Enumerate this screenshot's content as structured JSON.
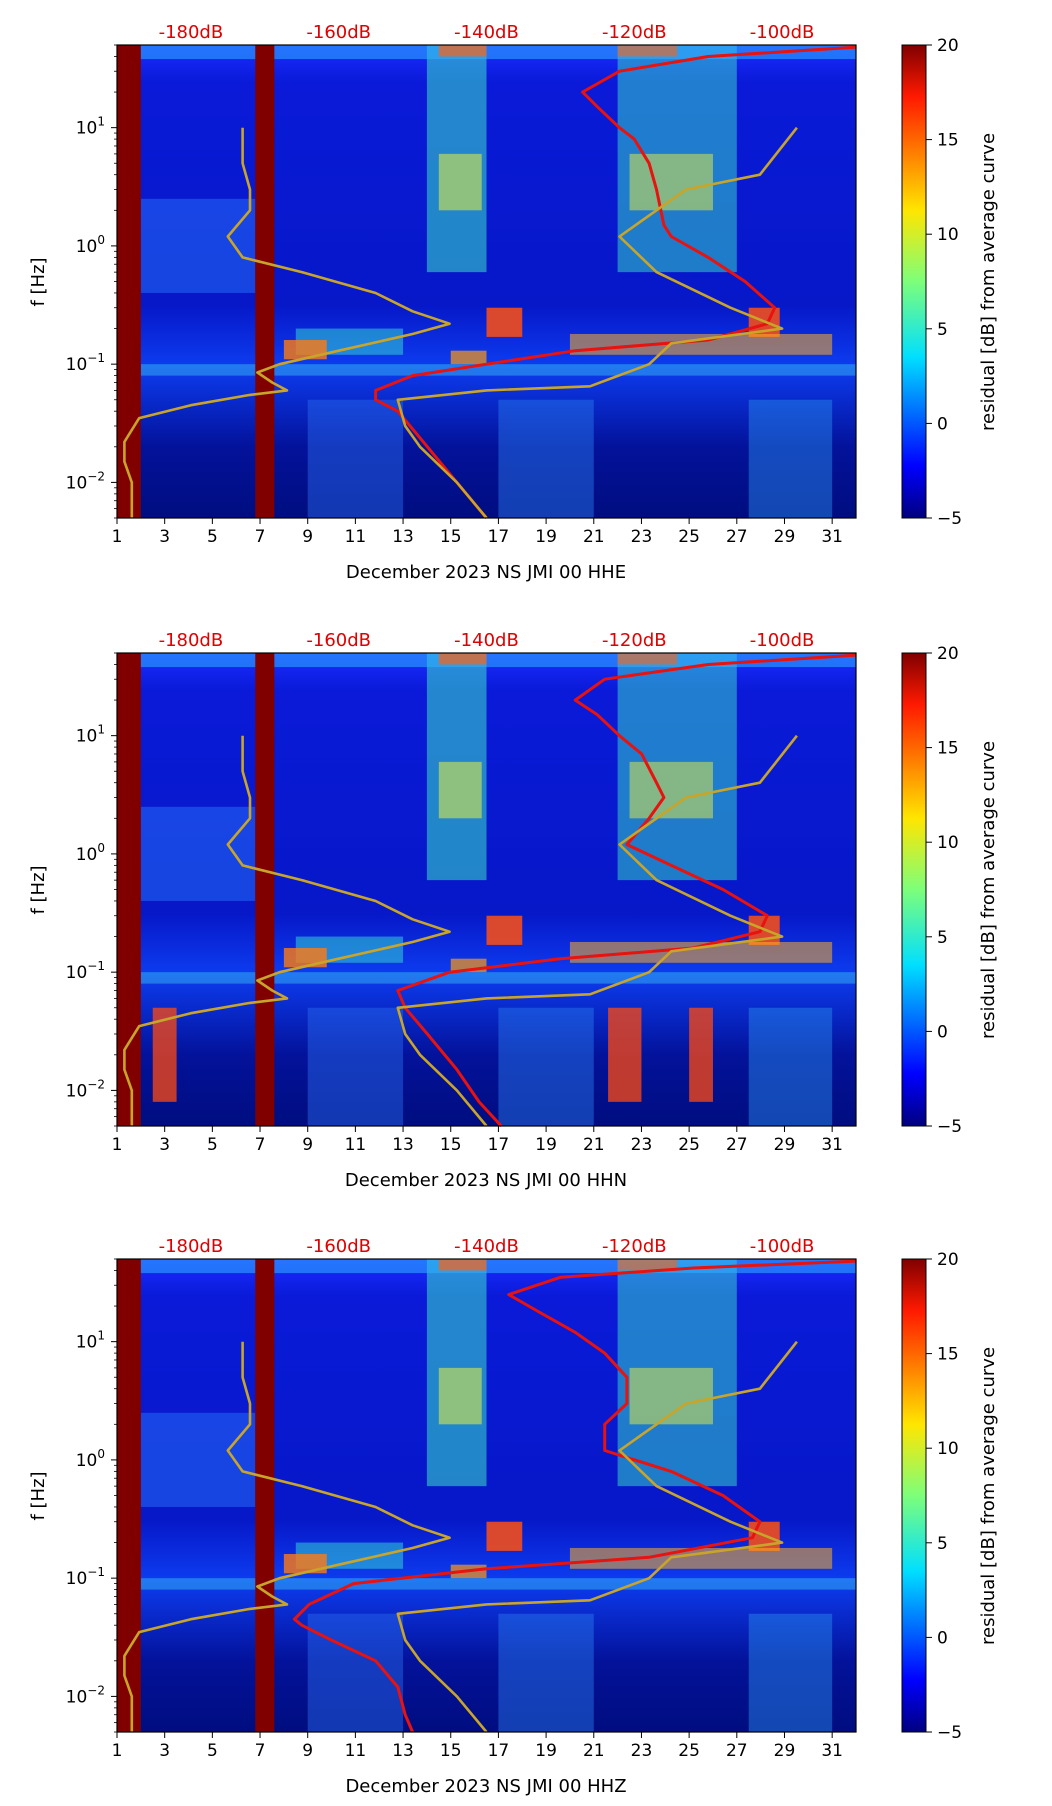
{
  "colors": {
    "dark_red": "#800000",
    "red_line": "#e8120e",
    "gold_line": "#c8a52a",
    "label_red": "#e00000"
  },
  "panels": [
    {
      "xlabel": "December 2023 NS JMI 00 HHE",
      "ylabel": "f [Hz]",
      "colorbar_label": "residual [dB] from average curve",
      "top_labels": [
        "-180dB",
        "-160dB",
        "-140dB",
        "-120dB",
        "-100dB"
      ],
      "xticks": [
        "1",
        "3",
        "5",
        "7",
        "9",
        "11",
        "13",
        "15",
        "17",
        "19",
        "21",
        "23",
        "25",
        "27",
        "29",
        "31"
      ],
      "yticks": [
        "10",
        "10",
        "10",
        "10"
      ],
      "ytick_exps": [
        "−2",
        "−1",
        "0",
        "1"
      ],
      "cbar_ticks": [
        "20",
        "15",
        "10",
        "5",
        "0",
        "−5"
      ]
    },
    {
      "xlabel": "December 2023 NS JMI 00 HHN",
      "ylabel": "f [Hz]",
      "colorbar_label": "residual [dB] from average curve",
      "top_labels": [
        "-180dB",
        "-160dB",
        "-140dB",
        "-120dB",
        "-100dB"
      ],
      "xticks": [
        "1",
        "3",
        "5",
        "7",
        "9",
        "11",
        "13",
        "15",
        "17",
        "19",
        "21",
        "23",
        "25",
        "27",
        "29",
        "31"
      ],
      "yticks": [
        "10",
        "10",
        "10",
        "10"
      ],
      "ytick_exps": [
        "−2",
        "−1",
        "0",
        "1"
      ],
      "cbar_ticks": [
        "20",
        "15",
        "10",
        "5",
        "0",
        "−5"
      ]
    },
    {
      "xlabel": "December 2023 NS JMI 00 HHZ",
      "ylabel": "f [Hz]",
      "colorbar_label": "residual [dB] from average curve",
      "top_labels": [
        "-180dB",
        "-160dB",
        "-140dB",
        "-120dB",
        "-100dB"
      ],
      "xticks": [
        "1",
        "3",
        "5",
        "7",
        "9",
        "11",
        "13",
        "15",
        "17",
        "19",
        "21",
        "23",
        "25",
        "27",
        "29",
        "31"
      ],
      "yticks": [
        "10",
        "10",
        "10",
        "10"
      ],
      "ytick_exps": [
        "−2",
        "−1",
        "0",
        "1"
      ],
      "cbar_ticks": [
        "20",
        "15",
        "10",
        "5",
        "0",
        "−5"
      ]
    }
  ],
  "chart_data": [
    {
      "type": "heatmap",
      "title": "",
      "xlabel": "December 2023 NS JMI 00 HHE",
      "ylabel": "f [Hz]",
      "xlim": [
        1,
        32
      ],
      "ylim": [
        0.005,
        50
      ],
      "yscale": "log",
      "colorbar": {
        "label": "residual [dB] from average curve",
        "range": [
          -5,
          20
        ]
      },
      "top_axis_labels": [
        "-180dB",
        "-160dB",
        "-140dB",
        "-120dB",
        "-100dB"
      ],
      "top_axis_db_range": [
        -190,
        -90
      ],
      "missing_data_days": [
        [
          1.0,
          2.0
        ],
        [
          6.8,
          7.6
        ]
      ],
      "series": [
        {
          "name": "red PSD curve (dB)",
          "color": "#e8120e",
          "points": [
            [
              -90,
              48
            ],
            [
              -110,
              40
            ],
            [
              -122,
              30
            ],
            [
              -127,
              20
            ],
            [
              -125,
              15
            ],
            [
              -122,
              10
            ],
            [
              -120,
              8
            ],
            [
              -118,
              5
            ],
            [
              -117,
              3
            ],
            [
              -116,
              1.5
            ],
            [
              -115,
              1.2
            ],
            [
              -110,
              0.8
            ],
            [
              -105,
              0.5
            ],
            [
              -101,
              0.3
            ],
            [
              -102,
              0.22
            ],
            [
              -110,
              0.16
            ],
            [
              -128,
              0.13
            ],
            [
              -140,
              0.1
            ],
            [
              -150,
              0.08
            ],
            [
              -155,
              0.06
            ],
            [
              -155,
              0.05
            ],
            [
              -152,
              0.04
            ],
            [
              -148,
              0.02
            ],
            [
              -144,
              0.01
            ],
            [
              -140,
              0.005
            ]
          ]
        },
        {
          "name": "gold reference curve (dB)",
          "color": "#c8a52a",
          "points": [
            [
              -188,
              0.005
            ],
            [
              -188,
              0.01
            ],
            [
              -189,
              0.015
            ],
            [
              -189,
              0.022
            ],
            [
              -187,
              0.035
            ],
            [
              -180,
              0.045
            ],
            [
              -172,
              0.055
            ],
            [
              -167,
              0.06
            ],
            [
              -169,
              0.07
            ],
            [
              -171,
              0.085
            ],
            [
              -168,
              0.1
            ],
            [
              -160,
              0.13
            ],
            [
              -150,
              0.18
            ],
            [
              -145,
              0.22
            ],
            [
              -150,
              0.28
            ],
            [
              -155,
              0.4
            ],
            [
              -165,
              0.6
            ],
            [
              -173,
              0.8
            ],
            [
              -175,
              1.2
            ],
            [
              -172,
              2
            ],
            [
              -172,
              3
            ],
            [
              -173,
              5
            ],
            [
              -173,
              10
            ]
          ]
        },
        {
          "name": "gold reference curve 2 (dB)",
          "color": "#c8a52a",
          "points": [
            [
              -140,
              0.005
            ],
            [
              -144,
              0.01
            ],
            [
              -149,
              0.02
            ],
            [
              -151,
              0.03
            ],
            [
              -152,
              0.05
            ],
            [
              -140,
              0.06
            ],
            [
              -126,
              0.065
            ],
            [
              -118,
              0.1
            ],
            [
              -115,
              0.15
            ],
            [
              -100,
              0.2
            ],
            [
              -107,
              0.3
            ],
            [
              -117,
              0.6
            ],
            [
              -122,
              1.2
            ],
            [
              -117,
              2
            ],
            [
              -113,
              3
            ],
            [
              -103,
              4
            ],
            [
              -98,
              10
            ]
          ]
        }
      ]
    },
    {
      "type": "heatmap",
      "title": "",
      "xlabel": "December 2023 NS JMI 00 HHN",
      "ylabel": "f [Hz]",
      "xlim": [
        1,
        32
      ],
      "ylim": [
        0.005,
        50
      ],
      "yscale": "log",
      "colorbar": {
        "label": "residual [dB] from average curve",
        "range": [
          -5,
          20
        ]
      },
      "top_axis_labels": [
        "-180dB",
        "-160dB",
        "-140dB",
        "-120dB",
        "-100dB"
      ],
      "top_axis_db_range": [
        -190,
        -90
      ],
      "missing_data_days": [
        [
          1.0,
          2.0
        ],
        [
          6.8,
          7.6
        ]
      ],
      "series": [
        {
          "name": "red PSD curve (dB)",
          "color": "#e8120e",
          "points": [
            [
              -90,
              48
            ],
            [
              -110,
              40
            ],
            [
              -124,
              30
            ],
            [
              -128,
              20
            ],
            [
              -125,
              15
            ],
            [
              -122,
              10
            ],
            [
              -119,
              7
            ],
            [
              -117,
              4
            ],
            [
              -116,
              3
            ],
            [
              -118,
              2
            ],
            [
              -121,
              1.2
            ],
            [
              -115,
              0.8
            ],
            [
              -108,
              0.5
            ],
            [
              -102,
              0.3
            ],
            [
              -103,
              0.22
            ],
            [
              -112,
              0.16
            ],
            [
              -130,
              0.13
            ],
            [
              -145,
              0.1
            ],
            [
              -152,
              0.07
            ],
            [
              -151,
              0.05
            ],
            [
              -148,
              0.03
            ],
            [
              -144,
              0.015
            ],
            [
              -141,
              0.008
            ],
            [
              -138,
              0.005
            ]
          ]
        },
        {
          "name": "gold reference curve (dB)",
          "color": "#c8a52a",
          "points": [
            [
              -188,
              0.005
            ],
            [
              -188,
              0.01
            ],
            [
              -189,
              0.015
            ],
            [
              -189,
              0.022
            ],
            [
              -187,
              0.035
            ],
            [
              -180,
              0.045
            ],
            [
              -172,
              0.055
            ],
            [
              -167,
              0.06
            ],
            [
              -169,
              0.07
            ],
            [
              -171,
              0.085
            ],
            [
              -168,
              0.1
            ],
            [
              -160,
              0.13
            ],
            [
              -150,
              0.18
            ],
            [
              -145,
              0.22
            ],
            [
              -150,
              0.28
            ],
            [
              -155,
              0.4
            ],
            [
              -165,
              0.6
            ],
            [
              -173,
              0.8
            ],
            [
              -175,
              1.2
            ],
            [
              -172,
              2
            ],
            [
              -172,
              3
            ],
            [
              -173,
              5
            ],
            [
              -173,
              10
            ]
          ]
        },
        {
          "name": "gold reference curve 2 (dB)",
          "color": "#c8a52a",
          "points": [
            [
              -140,
              0.005
            ],
            [
              -144,
              0.01
            ],
            [
              -149,
              0.02
            ],
            [
              -151,
              0.03
            ],
            [
              -152,
              0.05
            ],
            [
              -140,
              0.06
            ],
            [
              -126,
              0.065
            ],
            [
              -118,
              0.1
            ],
            [
              -115,
              0.15
            ],
            [
              -100,
              0.2
            ],
            [
              -107,
              0.3
            ],
            [
              -117,
              0.6
            ],
            [
              -122,
              1.2
            ],
            [
              -117,
              2
            ],
            [
              -113,
              3
            ],
            [
              -103,
              4
            ],
            [
              -98,
              10
            ]
          ]
        }
      ]
    },
    {
      "type": "heatmap",
      "title": "",
      "xlabel": "December 2023 NS JMI 00 HHZ",
      "ylabel": "f [Hz]",
      "xlim": [
        1,
        32
      ],
      "ylim": [
        0.005,
        50
      ],
      "yscale": "log",
      "colorbar": {
        "label": "residual [dB] from average curve",
        "range": [
          -5,
          20
        ]
      },
      "top_axis_labels": [
        "-180dB",
        "-160dB",
        "-140dB",
        "-120dB",
        "-100dB"
      ],
      "top_axis_db_range": [
        -190,
        -90
      ],
      "missing_data_days": [
        [
          1.0,
          2.0
        ],
        [
          6.8,
          7.6
        ]
      ],
      "series": [
        {
          "name": "red PSD curve (dB)",
          "color": "#e8120e",
          "points": [
            [
              -90,
              48
            ],
            [
              -112,
              42
            ],
            [
              -130,
              35
            ],
            [
              -137,
              25
            ],
            [
              -133,
              18
            ],
            [
              -128,
              12
            ],
            [
              -124,
              8
            ],
            [
              -121,
              5
            ],
            [
              -121,
              3
            ],
            [
              -124,
              2
            ],
            [
              -124,
              1.2
            ],
            [
              -115,
              0.8
            ],
            [
              -108,
              0.5
            ],
            [
              -103,
              0.3
            ],
            [
              -104,
              0.22
            ],
            [
              -118,
              0.15
            ],
            [
              -140,
              0.12
            ],
            [
              -158,
              0.09
            ],
            [
              -164,
              0.06
            ],
            [
              -166,
              0.045
            ],
            [
              -165,
              0.04
            ],
            [
              -161,
              0.03
            ],
            [
              -155,
              0.02
            ],
            [
              -152,
              0.012
            ],
            [
              -151,
              0.007
            ],
            [
              -150,
              0.005
            ]
          ]
        },
        {
          "name": "gold reference curve (dB)",
          "color": "#c8a52a",
          "points": [
            [
              -188,
              0.005
            ],
            [
              -188,
              0.01
            ],
            [
              -189,
              0.015
            ],
            [
              -189,
              0.022
            ],
            [
              -187,
              0.035
            ],
            [
              -180,
              0.045
            ],
            [
              -172,
              0.055
            ],
            [
              -167,
              0.06
            ],
            [
              -169,
              0.07
            ],
            [
              -171,
              0.085
            ],
            [
              -168,
              0.1
            ],
            [
              -160,
              0.13
            ],
            [
              -150,
              0.18
            ],
            [
              -145,
              0.22
            ],
            [
              -150,
              0.28
            ],
            [
              -155,
              0.4
            ],
            [
              -165,
              0.6
            ],
            [
              -173,
              0.8
            ],
            [
              -175,
              1.2
            ],
            [
              -172,
              2
            ],
            [
              -172,
              3
            ],
            [
              -173,
              5
            ],
            [
              -173,
              10
            ]
          ]
        },
        {
          "name": "gold reference curve 2 (dB)",
          "color": "#c8a52a",
          "points": [
            [
              -140,
              0.005
            ],
            [
              -144,
              0.01
            ],
            [
              -149,
              0.02
            ],
            [
              -151,
              0.03
            ],
            [
              -152,
              0.05
            ],
            [
              -140,
              0.06
            ],
            [
              -126,
              0.065
            ],
            [
              -118,
              0.1
            ],
            [
              -115,
              0.15
            ],
            [
              -100,
              0.2
            ],
            [
              -107,
              0.3
            ],
            [
              -117,
              0.6
            ],
            [
              -122,
              1.2
            ],
            [
              -117,
              2
            ],
            [
              -113,
              3
            ],
            [
              -103,
              4
            ],
            [
              -98,
              10
            ]
          ]
        }
      ]
    }
  ]
}
